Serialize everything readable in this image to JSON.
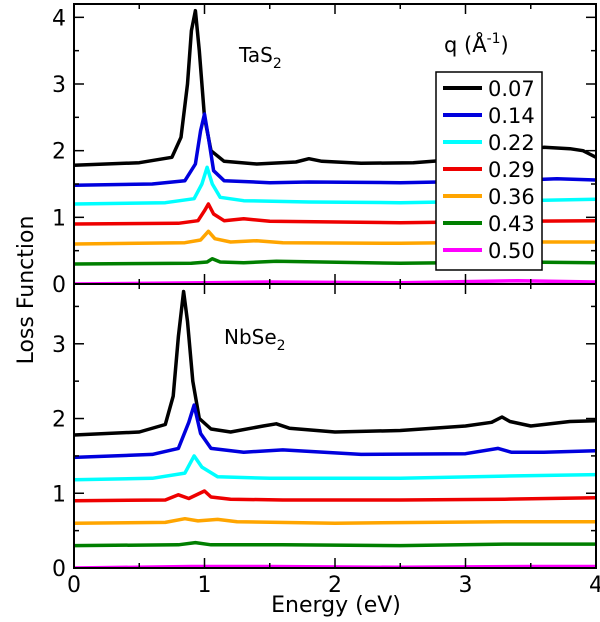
{
  "chart_data": {
    "type": "line",
    "xlabel": "Energy (eV)",
    "ylabel": "Loss Function",
    "xlim": [
      0,
      4
    ],
    "x_ticks": [
      "0",
      "1",
      "2",
      "3",
      "4"
    ],
    "legend": {
      "title_main": "q (",
      "title_unit": "Å",
      "title_sup": "-1",
      "title_close": ")",
      "placement": "top-right",
      "entries": [
        "0.07",
        "0.14",
        "0.22",
        "0.29",
        "0.36",
        "0.43",
        "0.50"
      ]
    },
    "colors": [
      "#000000",
      "#0000dd",
      "#00ffff",
      "#ee0000",
      "#ffa500",
      "#007f00",
      "#ff00ff"
    ],
    "panels": [
      {
        "label_main": "TaS",
        "label_sub": "2",
        "ylim": [
          0,
          4.2
        ],
        "y_ticks": [
          "0",
          "1",
          "2",
          "3",
          "4"
        ],
        "series": [
          {
            "name": "0.07",
            "points": [
              [
                0,
                1.78
              ],
              [
                0.5,
                1.82
              ],
              [
                0.75,
                1.9
              ],
              [
                0.82,
                2.2
              ],
              [
                0.87,
                3.0
              ],
              [
                0.9,
                3.8
              ],
              [
                0.93,
                4.1
              ],
              [
                0.96,
                3.5
              ],
              [
                1.0,
                2.5
              ],
              [
                1.05,
                2.0
              ],
              [
                1.15,
                1.84
              ],
              [
                1.4,
                1.8
              ],
              [
                1.7,
                1.83
              ],
              [
                1.8,
                1.88
              ],
              [
                1.9,
                1.84
              ],
              [
                2.2,
                1.81
              ],
              [
                2.6,
                1.82
              ],
              [
                3.0,
                1.88
              ],
              [
                3.4,
                1.98
              ],
              [
                3.6,
                2.05
              ],
              [
                3.8,
                2.03
              ],
              [
                3.9,
                2.0
              ],
              [
                3.95,
                1.95
              ],
              [
                4.0,
                1.9
              ]
            ]
          },
          {
            "name": "0.14",
            "points": [
              [
                0,
                1.48
              ],
              [
                0.6,
                1.5
              ],
              [
                0.85,
                1.55
              ],
              [
                0.93,
                1.8
              ],
              [
                0.97,
                2.3
              ],
              [
                1.0,
                2.55
              ],
              [
                1.03,
                2.2
              ],
              [
                1.07,
                1.7
              ],
              [
                1.15,
                1.55
              ],
              [
                1.5,
                1.52
              ],
              [
                1.8,
                1.53
              ],
              [
                2.5,
                1.52
              ],
              [
                3.3,
                1.55
              ],
              [
                3.7,
                1.58
              ],
              [
                4.0,
                1.56
              ]
            ]
          },
          {
            "name": "0.22",
            "points": [
              [
                0,
                1.2
              ],
              [
                0.7,
                1.22
              ],
              [
                0.92,
                1.28
              ],
              [
                0.98,
                1.5
              ],
              [
                1.02,
                1.75
              ],
              [
                1.06,
                1.5
              ],
              [
                1.12,
                1.3
              ],
              [
                1.3,
                1.25
              ],
              [
                1.8,
                1.23
              ],
              [
                2.5,
                1.22
              ],
              [
                3.4,
                1.25
              ],
              [
                4.0,
                1.27
              ]
            ]
          },
          {
            "name": "0.29",
            "points": [
              [
                0,
                0.9
              ],
              [
                0.8,
                0.91
              ],
              [
                0.95,
                0.95
              ],
              [
                1.0,
                1.1
              ],
              [
                1.03,
                1.2
              ],
              [
                1.07,
                1.05
              ],
              [
                1.15,
                0.95
              ],
              [
                1.3,
                0.98
              ],
              [
                1.5,
                0.94
              ],
              [
                2.5,
                0.92
              ],
              [
                3.4,
                0.94
              ],
              [
                4.0,
                0.95
              ]
            ]
          },
          {
            "name": "0.36",
            "points": [
              [
                0,
                0.6
              ],
              [
                0.85,
                0.62
              ],
              [
                0.97,
                0.66
              ],
              [
                1.03,
                0.79
              ],
              [
                1.08,
                0.68
              ],
              [
                1.2,
                0.63
              ],
              [
                1.4,
                0.65
              ],
              [
                1.6,
                0.62
              ],
              [
                2.5,
                0.61
              ],
              [
                3.4,
                0.63
              ],
              [
                4.0,
                0.63
              ]
            ]
          },
          {
            "name": "0.43",
            "points": [
              [
                0,
                0.3
              ],
              [
                0.9,
                0.31
              ],
              [
                1.02,
                0.33
              ],
              [
                1.06,
                0.38
              ],
              [
                1.12,
                0.33
              ],
              [
                1.3,
                0.32
              ],
              [
                1.55,
                0.34
              ],
              [
                2.5,
                0.31
              ],
              [
                3.4,
                0.33
              ],
              [
                4.0,
                0.32
              ]
            ]
          },
          {
            "name": "0.50",
            "points": [
              [
                0,
                0.0
              ],
              [
                1.0,
                0.02
              ],
              [
                1.5,
                0.03
              ],
              [
                2.5,
                0.02
              ],
              [
                3.4,
                0.05
              ],
              [
                4.0,
                0.03
              ]
            ]
          }
        ]
      },
      {
        "label_main": "NbSe",
        "label_sub": "2",
        "ylim": [
          0,
          3.8
        ],
        "y_ticks": [
          "0",
          "1",
          "2",
          "3"
        ],
        "series": [
          {
            "name": "0.07",
            "points": [
              [
                0,
                1.78
              ],
              [
                0.5,
                1.82
              ],
              [
                0.7,
                1.92
              ],
              [
                0.76,
                2.3
              ],
              [
                0.8,
                3.1
              ],
              [
                0.84,
                3.7
              ],
              [
                0.87,
                3.3
              ],
              [
                0.91,
                2.5
              ],
              [
                0.96,
                2.0
              ],
              [
                1.05,
                1.86
              ],
              [
                1.2,
                1.82
              ],
              [
                1.45,
                1.9
              ],
              [
                1.55,
                1.93
              ],
              [
                1.65,
                1.87
              ],
              [
                2.0,
                1.82
              ],
              [
                2.5,
                1.84
              ],
              [
                3.0,
                1.9
              ],
              [
                3.2,
                1.95
              ],
              [
                3.28,
                2.02
              ],
              [
                3.34,
                1.96
              ],
              [
                3.5,
                1.9
              ],
              [
                3.8,
                1.96
              ],
              [
                4.0,
                1.97
              ]
            ]
          },
          {
            "name": "0.14",
            "points": [
              [
                0,
                1.48
              ],
              [
                0.6,
                1.52
              ],
              [
                0.8,
                1.6
              ],
              [
                0.88,
                1.95
              ],
              [
                0.92,
                2.18
              ],
              [
                0.97,
                1.8
              ],
              [
                1.05,
                1.6
              ],
              [
                1.3,
                1.55
              ],
              [
                1.6,
                1.58
              ],
              [
                2.2,
                1.52
              ],
              [
                3.0,
                1.53
              ],
              [
                3.25,
                1.6
              ],
              [
                3.35,
                1.55
              ],
              [
                3.6,
                1.55
              ],
              [
                4.0,
                1.57
              ]
            ]
          },
          {
            "name": "0.22",
            "points": [
              [
                0,
                1.18
              ],
              [
                0.6,
                1.2
              ],
              [
                0.85,
                1.27
              ],
              [
                0.92,
                1.5
              ],
              [
                0.98,
                1.35
              ],
              [
                1.1,
                1.22
              ],
              [
                1.5,
                1.2
              ],
              [
                2.5,
                1.2
              ],
              [
                3.3,
                1.23
              ],
              [
                4.0,
                1.25
              ]
            ]
          },
          {
            "name": "0.29",
            "points": [
              [
                0,
                0.9
              ],
              [
                0.7,
                0.91
              ],
              [
                0.8,
                0.98
              ],
              [
                0.88,
                0.93
              ],
              [
                1.0,
                1.03
              ],
              [
                1.05,
                0.95
              ],
              [
                1.2,
                0.92
              ],
              [
                1.6,
                0.91
              ],
              [
                2.5,
                0.91
              ],
              [
                3.3,
                0.92
              ],
              [
                4.0,
                0.94
              ]
            ]
          },
          {
            "name": "0.36",
            "points": [
              [
                0,
                0.6
              ],
              [
                0.7,
                0.61
              ],
              [
                0.85,
                0.66
              ],
              [
                0.95,
                0.63
              ],
              [
                1.1,
                0.65
              ],
              [
                1.25,
                0.62
              ],
              [
                2.0,
                0.6
              ],
              [
                3.3,
                0.62
              ],
              [
                4.0,
                0.62
              ]
            ]
          },
          {
            "name": "0.43",
            "points": [
              [
                0,
                0.3
              ],
              [
                0.8,
                0.31
              ],
              [
                0.93,
                0.34
              ],
              [
                1.05,
                0.31
              ],
              [
                1.6,
                0.31
              ],
              [
                2.5,
                0.3
              ],
              [
                3.3,
                0.32
              ],
              [
                4.0,
                0.32
              ]
            ]
          },
          {
            "name": "0.50",
            "points": [
              [
                0,
                0.0
              ],
              [
                0.9,
                0.02
              ],
              [
                1.5,
                0.02
              ],
              [
                2.5,
                0.01
              ],
              [
                3.5,
                0.02
              ],
              [
                4.0,
                0.02
              ]
            ]
          }
        ]
      }
    ]
  }
}
